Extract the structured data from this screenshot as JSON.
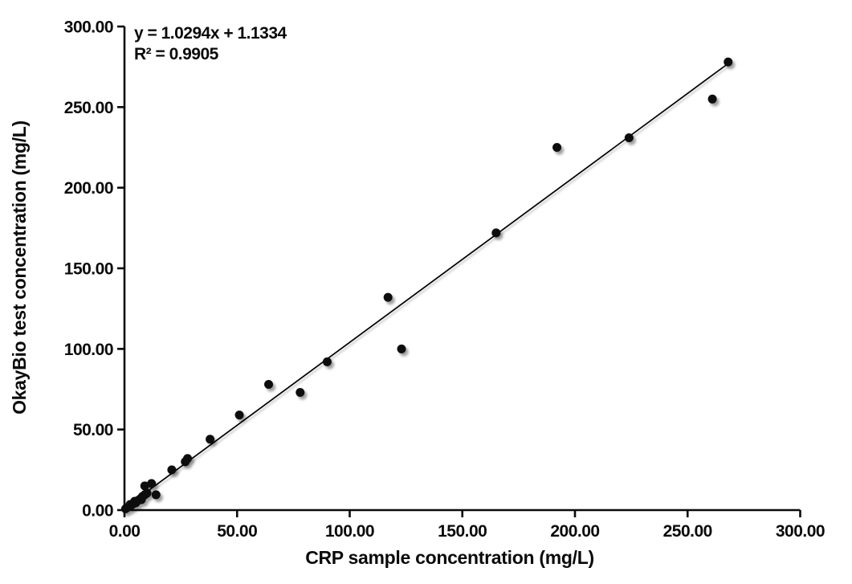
{
  "chart_data": {
    "type": "scatter",
    "title": "",
    "xlabel": "CRP sample concentration (mg/L)",
    "ylabel": "OkayBio test concentration (mg/L)",
    "xlim": [
      0,
      300
    ],
    "ylim": [
      0,
      300
    ],
    "xticks": [
      0,
      50,
      100,
      150,
      200,
      250,
      300
    ],
    "yticks": [
      0,
      50,
      100,
      150,
      200,
      250,
      300
    ],
    "tick_decimals": 2,
    "grid": false,
    "legend": "none",
    "points": [
      [
        0.5,
        0.8
      ],
      [
        1,
        1.5
      ],
      [
        2,
        2
      ],
      [
        2.5,
        3.5
      ],
      [
        3,
        3
      ],
      [
        4,
        4
      ],
      [
        4.5,
        5.5
      ],
      [
        5,
        4.5
      ],
      [
        6,
        6
      ],
      [
        7,
        7
      ],
      [
        7.5,
        6.5
      ],
      [
        8,
        8.5
      ],
      [
        9,
        9.5
      ],
      [
        10,
        10.5
      ],
      [
        9,
        15
      ],
      [
        12,
        16.5
      ],
      [
        14,
        9.5
      ],
      [
        21,
        25
      ],
      [
        27,
        30
      ],
      [
        28,
        32
      ],
      [
        38,
        44
      ],
      [
        51,
        59
      ],
      [
        64,
        78
      ],
      [
        78,
        73
      ],
      [
        90,
        92
      ],
      [
        117,
        132
      ],
      [
        123,
        100
      ],
      [
        165,
        172
      ],
      [
        192,
        225
      ],
      [
        224,
        231
      ],
      [
        261,
        255
      ],
      [
        268,
        278
      ]
    ],
    "trendline": {
      "slope": 1.0294,
      "intercept": 1.1334,
      "x_start": 0,
      "x_end": 268
    },
    "annotation": {
      "line1": "y = 1.0294x + 1.1334",
      "line2": "R² = 0.9905"
    },
    "colors": {
      "marker": "#0a0a0a",
      "line": "#000000",
      "axis": "#0a0a0a",
      "text": "#0a0a0a",
      "background": "#ffffff"
    }
  }
}
